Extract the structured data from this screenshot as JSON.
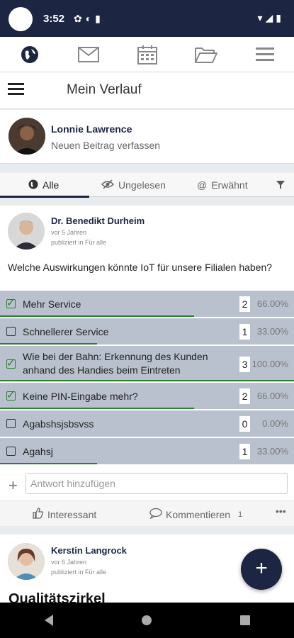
{
  "status": {
    "time": "3:52"
  },
  "nav": {
    "icons": [
      "globe-icon",
      "mail-icon",
      "calendar-icon",
      "folder-icon",
      "menu-icon"
    ]
  },
  "header": {
    "title": "Mein Verlauf"
  },
  "composer": {
    "name": "Lonnie Lawrence",
    "prompt": "Neuen Beitrag verfassen"
  },
  "tabs": [
    {
      "label": "Alle"
    },
    {
      "label": "Ungelesen"
    },
    {
      "label": "Erwähnt"
    }
  ],
  "post": {
    "author": "Dr. Benedikt Durheim",
    "time": "vor 5 Jahren",
    "published": "publiziert in Für alle",
    "question": "Welche Auswirkungen könnte IoT für unsere Filialen haben?",
    "options": [
      {
        "label": "Mehr Service",
        "count": "2",
        "percent": "66.00%",
        "checked": true,
        "fraction": 0.66
      },
      {
        "label": "Schnellerer Service",
        "count": "1",
        "percent": "33.00%",
        "checked": false,
        "fraction": 0.33
      },
      {
        "label": "Wie bei der Bahn: Erkennung des Kunden anhand des Handies beim Eintreten",
        "count": "3",
        "percent": "100.00%",
        "checked": true,
        "fraction": 1.0
      },
      {
        "label": "Keine PIN-Eingabe mehr?",
        "count": "2",
        "percent": "66.00%",
        "checked": true,
        "fraction": 0.66
      },
      {
        "label": "Agabshsjsbsvss",
        "count": "0",
        "percent": "0.00%",
        "checked": false,
        "fraction": 0.0
      },
      {
        "label": "Agahsj",
        "count": "1",
        "percent": "33.00%",
        "checked": false,
        "fraction": 0.33
      }
    ],
    "answer_placeholder": "Antwort hinzufügen",
    "like_label": "Interessant",
    "comment_label": "Kommentieren",
    "comment_count": "1",
    "more_label": "•••"
  },
  "post2": {
    "author": "Kerstin Langrock",
    "time": "vor 6 Jahren",
    "published": "publiziert in Für alle",
    "title": "Qualitätszirkel"
  },
  "fab": {
    "label": "+"
  },
  "colors": {
    "brand": "#1c2541",
    "poll_bg": "#b9c1ce",
    "accent": "#2e7d32"
  }
}
